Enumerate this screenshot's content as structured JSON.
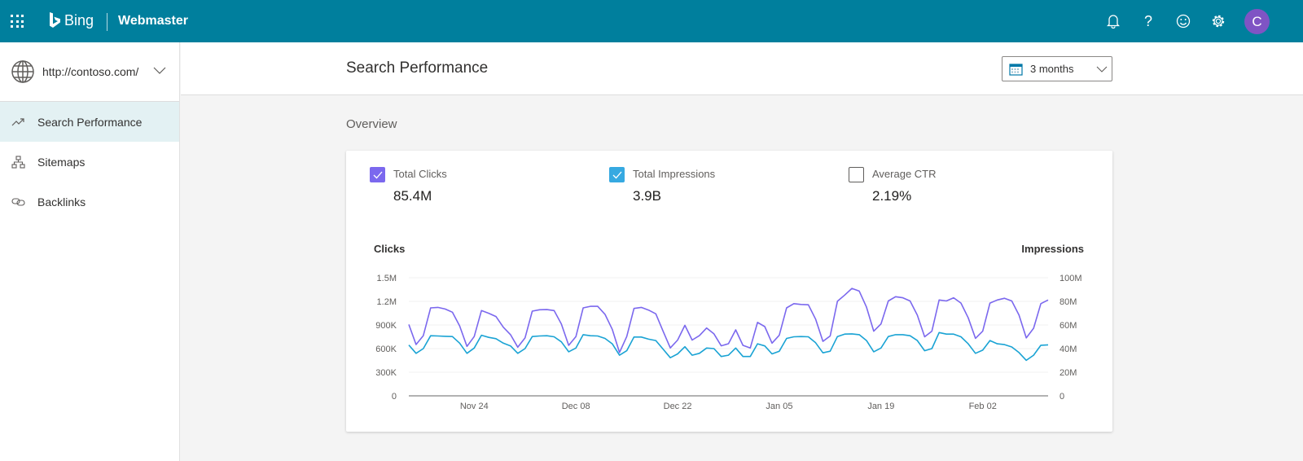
{
  "header": {
    "brand": "Bing",
    "product": "Webmaster",
    "avatar_initial": "C",
    "icons": [
      "waffle-icon",
      "bell-icon",
      "help-icon",
      "smiley-icon",
      "gear-icon"
    ]
  },
  "sidebar": {
    "site": "http://contoso.com/",
    "items": [
      {
        "label": "Search Performance",
        "icon": "trend-icon",
        "active": true
      },
      {
        "label": "Sitemaps",
        "icon": "sitemap-icon"
      },
      {
        "label": "Backlinks",
        "icon": "link-icon"
      }
    ]
  },
  "main": {
    "title": "Search Performance",
    "range": "3 months",
    "overview": "Overview",
    "metrics": [
      {
        "label": "Total Clicks",
        "value": "85.4M",
        "checked": true,
        "color": "#7b68ee"
      },
      {
        "label": "Total Impressions",
        "value": "3.9B",
        "checked": true,
        "color": "#36a9e1"
      },
      {
        "label": "Average CTR",
        "value": "2.19%",
        "checked": false
      }
    ]
  },
  "colors": {
    "header": "#007f9d",
    "clicks": "#7b68ee",
    "impressions": "#1aa3d4",
    "active_nav": "#e3f1f3"
  },
  "chart_data": {
    "type": "line",
    "ylabel_left": "Clicks",
    "ylabel_right": "Impressions",
    "ylim_left": [
      0,
      1500000
    ],
    "ylim_right": [
      0,
      100000000
    ],
    "yticks_left": [
      "0",
      "300K",
      "600K",
      "900K",
      "1.2M",
      "1.5M"
    ],
    "yticks_right": [
      "0",
      "20M",
      "40M",
      "60M",
      "80M",
      "100M"
    ],
    "xticks": [
      "Nov 24",
      "Dec 08",
      "Dec 22",
      "Jan 05",
      "Jan 19",
      "Feb 02"
    ],
    "x": [
      "Nov 15",
      "Nov 16",
      "Nov 17",
      "Nov 18",
      "Nov 19",
      "Nov 20",
      "Nov 21",
      "Nov 22",
      "Nov 23",
      "Nov 24",
      "Nov 25",
      "Nov 26",
      "Nov 27",
      "Nov 28",
      "Nov 29",
      "Nov 30",
      "Dec 01",
      "Dec 02",
      "Dec 03",
      "Dec 04",
      "Dec 05",
      "Dec 06",
      "Dec 07",
      "Dec 08",
      "Dec 09",
      "Dec 10",
      "Dec 11",
      "Dec 12",
      "Dec 13",
      "Dec 14",
      "Dec 15",
      "Dec 16",
      "Dec 17",
      "Dec 18",
      "Dec 19",
      "Dec 20",
      "Dec 21",
      "Dec 22",
      "Dec 23",
      "Dec 24",
      "Dec 25",
      "Dec 26",
      "Dec 27",
      "Dec 28",
      "Dec 29",
      "Dec 30",
      "Dec 31",
      "Jan 01",
      "Jan 02",
      "Jan 03",
      "Jan 04",
      "Jan 05",
      "Jan 06",
      "Jan 07",
      "Jan 08",
      "Jan 09",
      "Jan 10",
      "Jan 11",
      "Jan 12",
      "Jan 13",
      "Jan 14",
      "Jan 15",
      "Jan 16",
      "Jan 17",
      "Jan 18",
      "Jan 19",
      "Jan 20",
      "Jan 21",
      "Jan 22",
      "Jan 23",
      "Jan 24",
      "Jan 25",
      "Jan 26",
      "Jan 27",
      "Jan 28",
      "Jan 29",
      "Jan 30",
      "Jan 31",
      "Feb 01",
      "Feb 02",
      "Feb 03",
      "Feb 04",
      "Feb 05",
      "Feb 06",
      "Feb 07",
      "Feb 08",
      "Feb 09",
      "Feb 10",
      "Feb 11"
    ],
    "series": [
      {
        "name": "Total Clicks",
        "axis": "left",
        "values": [
          906000,
          652000,
          764000,
          1117000,
          1123000,
          1103000,
          1062000,
          889000,
          628000,
          753000,
          1083000,
          1049000,
          1008000,
          872000,
          777000,
          618000,
          736000,
          1076000,
          1093000,
          1096000,
          1083000,
          913000,
          641000,
          753000,
          1117000,
          1137000,
          1137000,
          1035000,
          845000,
          550000,
          753000,
          1110000,
          1123000,
          1089000,
          1042000,
          821000,
          608000,
          709000,
          896000,
          709000,
          764000,
          862000,
          787000,
          635000,
          662000,
          838000,
          641000,
          608000,
          933000,
          879000,
          669000,
          770000,
          1117000,
          1171000,
          1161000,
          1157000,
          974000,
          692000,
          760000,
          1201000,
          1280000,
          1364000,
          1330000,
          1127000,
          821000,
          913000,
          1205000,
          1259000,
          1246000,
          1205000,
          1025000,
          750000,
          821000,
          1218000,
          1205000,
          1246000,
          1178000,
          991000,
          730000,
          821000,
          1178000,
          1218000,
          1239000,
          1205000,
          1025000,
          736000,
          859000,
          1171000,
          1218000
        ]
      },
      {
        "name": "Total Impressions",
        "axis": "right",
        "values": [
          43000000,
          36000000,
          40000000,
          50900000,
          50700000,
          50400000,
          50200000,
          44600000,
          36000000,
          40500000,
          51300000,
          49500000,
          48400000,
          44600000,
          42300000,
          36000000,
          40000000,
          50200000,
          50700000,
          50900000,
          50000000,
          45700000,
          37300000,
          40500000,
          51800000,
          50900000,
          50700000,
          48600000,
          44100000,
          34400000,
          38200000,
          49800000,
          49800000,
          48000000,
          46800000,
          39600000,
          32300000,
          35500000,
          41600000,
          34400000,
          36000000,
          40500000,
          40000000,
          33300000,
          34400000,
          40500000,
          33300000,
          33300000,
          44100000,
          42300000,
          35500000,
          37800000,
          48600000,
          50000000,
          50200000,
          50000000,
          45000000,
          36400000,
          37800000,
          50200000,
          52300000,
          52500000,
          51800000,
          46800000,
          37300000,
          40500000,
          50200000,
          51800000,
          51800000,
          50900000,
          46800000,
          38200000,
          40000000,
          53600000,
          52300000,
          52300000,
          50000000,
          44100000,
          36000000,
          38700000,
          46800000,
          44100000,
          43400000,
          41400000,
          36600000,
          30100000,
          34400000,
          42800000,
          43200000
        ]
      }
    ]
  }
}
